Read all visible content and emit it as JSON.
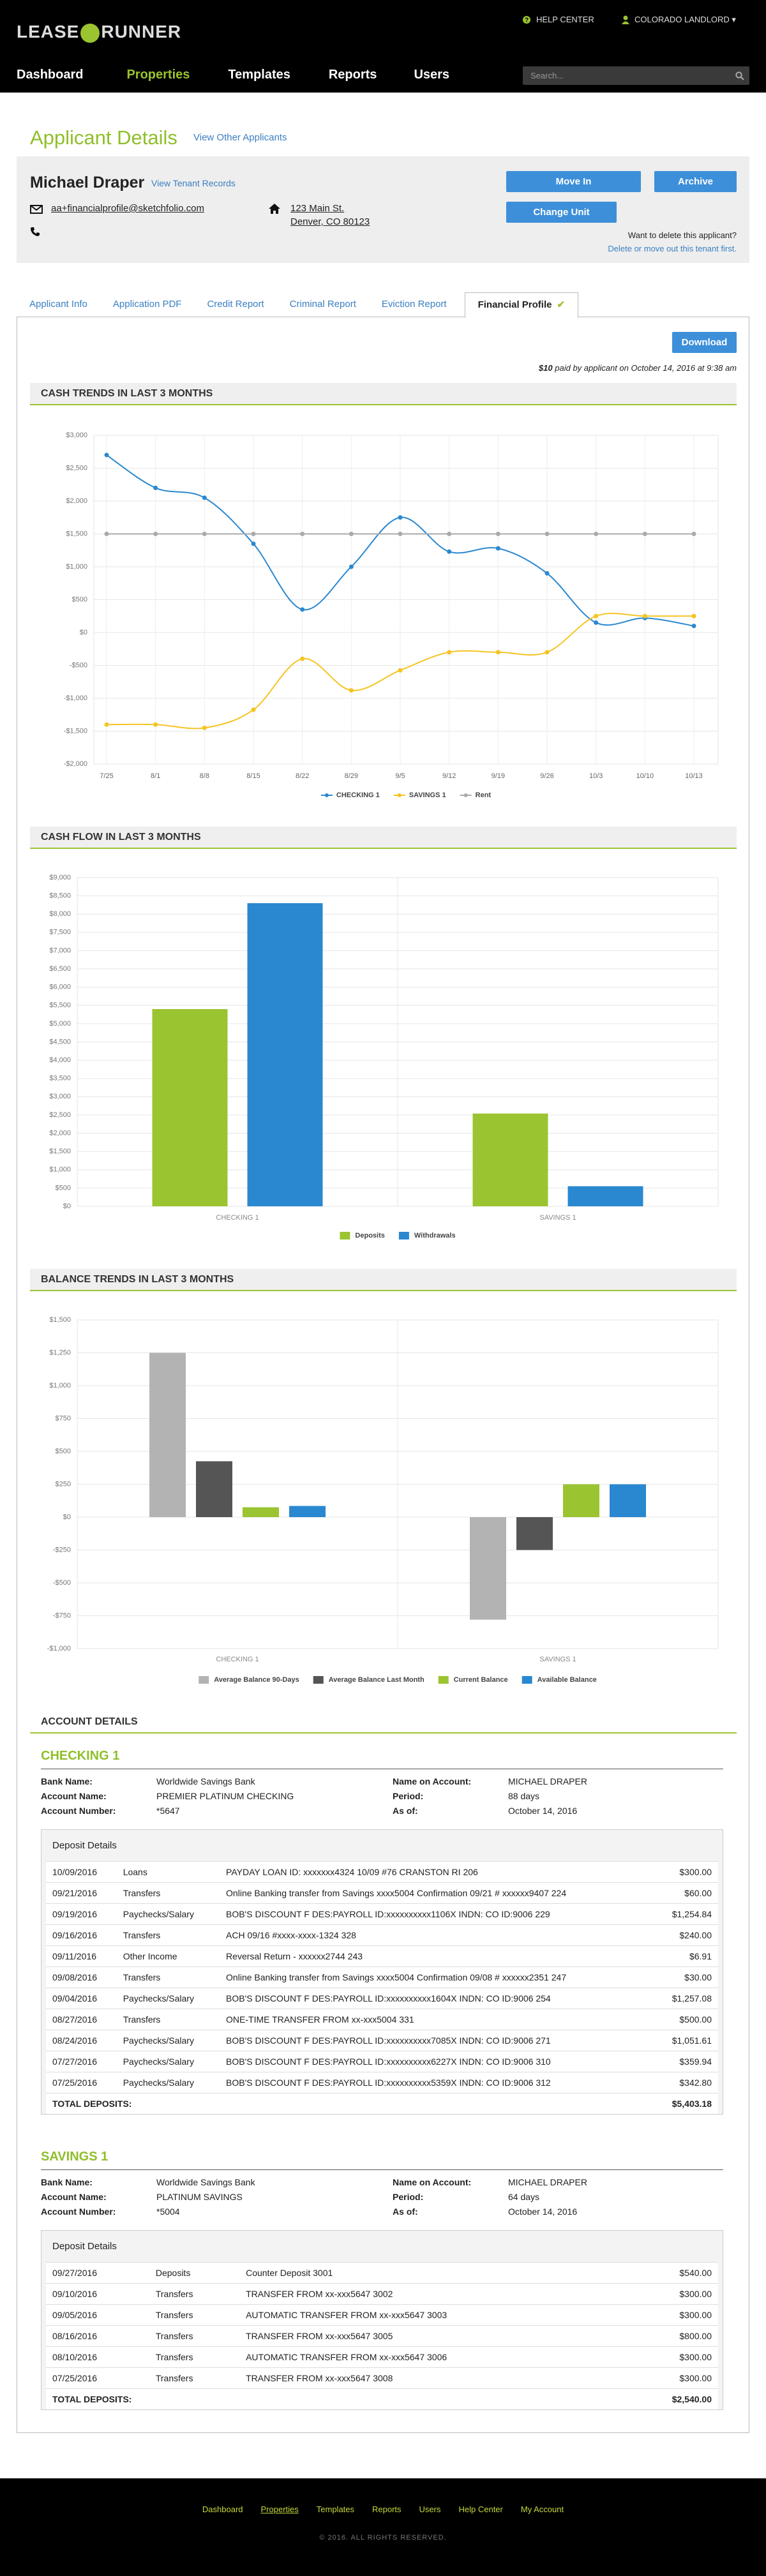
{
  "header": {
    "logo_left": "LEASE",
    "logo_right": "RUNNER",
    "help": "HELP CENTER",
    "user": "COLORADO LANDLORD",
    "nav": [
      "Dashboard",
      "Properties",
      "Templates",
      "Reports",
      "Users"
    ],
    "active_nav": 1,
    "search_placeholder": "Search..."
  },
  "page": {
    "title": "Applicant Details",
    "link": "View Other Applicants"
  },
  "applicant": {
    "name": "Michael Draper",
    "records_link": "View Tenant Records",
    "email": "aa+financialprofile@sketchfolio.com",
    "address": [
      "123 Main St.",
      "Denver, CO 80123"
    ],
    "buttons": [
      "Move In",
      "Archive",
      "Change Unit"
    ],
    "delete_question": "Want to delete this applicant?",
    "delete_note": "Delete or move out this tenant first."
  },
  "tabs": {
    "items": [
      "Applicant Info",
      "Application PDF",
      "Credit Report",
      "Criminal Report",
      "Eviction Report",
      "Financial Profile"
    ],
    "active": 5
  },
  "report": {
    "download": "Download",
    "payment_amount": "$10",
    "payment_note": "paid by applicant on October 14, 2016 at 9:38 am"
  },
  "chart_data": [
    {
      "type": "line",
      "title": "CASH TRENDS IN LAST 3 MONTHS",
      "categories": [
        "7/25",
        "8/1",
        "8/8",
        "8/15",
        "8/22",
        "8/29",
        "9/5",
        "9/12",
        "9/19",
        "9/26",
        "10/3",
        "10/10",
        "10/13"
      ],
      "series": [
        {
          "name": "CHECKING 1",
          "color": "#2a88d0",
          "values": [
            2700,
            2200,
            2050,
            1350,
            350,
            1000,
            1750,
            1230,
            1280,
            900,
            150,
            220,
            100
          ]
        },
        {
          "name": "SAVINGS 1",
          "color": "#f5c421",
          "values": [
            -1400,
            -1400,
            -1450,
            -1175,
            -400,
            -880,
            -575,
            -300,
            -300,
            -300,
            250,
            250,
            250
          ]
        },
        {
          "name": "Rent",
          "color": "#aaaaaa",
          "values": [
            1500,
            1500,
            1500,
            1500,
            1500,
            1500,
            1500,
            1500,
            1500,
            1500,
            1500,
            1500,
            1500
          ]
        }
      ],
      "ylim": [
        -2000,
        3000
      ],
      "yticks": [
        {
          "value": -2000,
          "label": "-$2,000"
        },
        {
          "value": -1500,
          "label": "-$1,500"
        },
        {
          "value": -1000,
          "label": "-$1,000"
        },
        {
          "value": -500,
          "label": "-$500"
        },
        {
          "value": 0,
          "label": "$0"
        },
        {
          "value": 500,
          "label": "$500"
        },
        {
          "value": 1000,
          "label": "$1,000"
        },
        {
          "value": 1500,
          "label": "$1,500"
        },
        {
          "value": 2000,
          "label": "$2,000"
        },
        {
          "value": 2500,
          "label": "$2,500"
        },
        {
          "value": 3000,
          "label": "$3,000"
        }
      ],
      "grid": true,
      "smooth": true
    },
    {
      "type": "bar",
      "title": "CASH FLOW IN LAST 3 MONTHS",
      "categories": [
        "CHECKING 1",
        "SAVINGS 1"
      ],
      "series": [
        {
          "name": "Deposits",
          "color": "#9bc431",
          "values": [
            5400,
            2540
          ]
        },
        {
          "name": "Withdrawals",
          "color": "#2a88d0",
          "values": [
            8300,
            550
          ]
        }
      ],
      "ylim": [
        0,
        9000
      ],
      "yticks": [
        {
          "value": 0,
          "label": "$0"
        },
        {
          "value": 500,
          "label": "$500"
        },
        {
          "value": 1000,
          "label": "$1,000"
        },
        {
          "value": 1500,
          "label": "$1,500"
        },
        {
          "value": 2000,
          "label": "$2,000"
        },
        {
          "value": 2500,
          "label": "$2,500"
        },
        {
          "value": 3000,
          "label": "$3,000"
        },
        {
          "value": 3500,
          "label": "$3,500"
        },
        {
          "value": 4000,
          "label": "$4,000"
        },
        {
          "value": 4500,
          "label": "$4,500"
        },
        {
          "value": 5000,
          "label": "$5,000"
        },
        {
          "value": 5500,
          "label": "$5,500"
        },
        {
          "value": 6000,
          "label": "$6,000"
        },
        {
          "value": 6500,
          "label": "$6,500"
        },
        {
          "value": 7000,
          "label": "$7,000"
        },
        {
          "value": 7500,
          "label": "$7,500"
        },
        {
          "value": 8000,
          "label": "$8,000"
        },
        {
          "value": 8500,
          "label": "$8,500"
        },
        {
          "value": 9000,
          "label": "$9,000"
        }
      ],
      "grid": true
    },
    {
      "type": "bar",
      "title": "BALANCE TRENDS IN LAST 3 MONTHS",
      "categories": [
        "CHECKING 1",
        "SAVINGS 1"
      ],
      "series": [
        {
          "name": "Average Balance 90-Days",
          "color": "#b3b3b3",
          "values": [
            1250,
            -780
          ]
        },
        {
          "name": "Average Balance Last Month",
          "color": "#555555",
          "values": [
            425,
            -250
          ]
        },
        {
          "name": "Current Balance",
          "color": "#9bc431",
          "values": [
            75,
            250
          ]
        },
        {
          "name": "Available Balance",
          "color": "#2a88d0",
          "values": [
            85,
            250
          ]
        }
      ],
      "ylim": [
        -1000,
        1500
      ],
      "yticks": [
        {
          "value": -1000,
          "label": "-$1,000"
        },
        {
          "value": -750,
          "label": "-$750"
        },
        {
          "value": -500,
          "label": "-$500"
        },
        {
          "value": -250,
          "label": "-$250"
        },
        {
          "value": 0,
          "label": "$0"
        },
        {
          "value": 250,
          "label": "$250"
        },
        {
          "value": 500,
          "label": "$500"
        },
        {
          "value": 750,
          "label": "$750"
        },
        {
          "value": 1000,
          "label": "$1,000"
        },
        {
          "value": 1250,
          "label": "$1,250"
        },
        {
          "value": 1500,
          "label": "$1,500"
        }
      ],
      "grid": true
    }
  ],
  "account_details": {
    "title": "ACCOUNT DETAILS",
    "accounts": [
      {
        "name": "CHECKING 1",
        "fields_left": [
          [
            "Bank Name:",
            "Worldwide Savings Bank"
          ],
          [
            "Account Name:",
            "PREMIER PLATINUM CHECKING"
          ],
          [
            "Account Number:",
            "*5647"
          ]
        ],
        "fields_right": [
          [
            "Name on Account:",
            "MICHAEL DRAPER"
          ],
          [
            "Period:",
            "88 days"
          ],
          [
            "As of:",
            "October 14, 2016"
          ]
        ],
        "deposits_title": "Deposit Details",
        "rows": [
          [
            "10/09/2016",
            "Loans",
            "PAYDAY LOAN ID: xxxxxxx4324 10/09 #76 CRANSTON RI 206",
            "$300.00"
          ],
          [
            "09/21/2016",
            "Transfers",
            "Online Banking transfer from Savings xxxx5004 Confirmation 09/21 # xxxxxx9407 224",
            "$60.00"
          ],
          [
            "09/19/2016",
            "Paychecks/Salary",
            "BOB'S DISCOUNT F DES:PAYROLL ID:xxxxxxxxxx1106X INDN: CO ID:9006 229",
            "$1,254.84"
          ],
          [
            "09/16/2016",
            "Transfers",
            "ACH 09/16 #xxxx-xxxx-1324 328",
            "$240.00"
          ],
          [
            "09/11/2016",
            "Other Income",
            "Reversal Return - xxxxxx2744 243",
            "$6.91"
          ],
          [
            "09/08/2016",
            "Transfers",
            "Online Banking transfer from Savings xxxx5004 Confirmation 09/08 # xxxxxx2351 247",
            "$30.00"
          ],
          [
            "09/04/2016",
            "Paychecks/Salary",
            "BOB'S DISCOUNT F DES:PAYROLL ID:xxxxxxxxxx1604X INDN: CO ID:9006 254",
            "$1,257.08"
          ],
          [
            "08/27/2016",
            "Transfers",
            "ONE-TIME TRANSFER FROM xx-xxx5004 331",
            "$500.00"
          ],
          [
            "08/24/2016",
            "Paychecks/Salary",
            "BOB'S DISCOUNT F DES:PAYROLL ID:xxxxxxxxxx7085X INDN: CO ID:9006 271",
            "$1,051.61"
          ],
          [
            "07/27/2016",
            "Paychecks/Salary",
            "BOB'S DISCOUNT F DES:PAYROLL ID:xxxxxxxxxx6227X INDN: CO ID:9006 310",
            "$359.94"
          ],
          [
            "07/25/2016",
            "Paychecks/Salary",
            "BOB'S DISCOUNT F DES:PAYROLL ID:xxxxxxxxxx5359X INDN: CO ID:9006 312",
            "$342.80"
          ]
        ],
        "total_label": "TOTAL DEPOSITS:",
        "total": "$5,403.18"
      },
      {
        "name": "SAVINGS 1",
        "fields_left": [
          [
            "Bank Name:",
            "Worldwide Savings Bank"
          ],
          [
            "Account Name:",
            "PLATINUM SAVINGS"
          ],
          [
            "Account Number:",
            "*5004"
          ]
        ],
        "fields_right": [
          [
            "Name on Account:",
            "MICHAEL DRAPER"
          ],
          [
            "Period:",
            "64 days"
          ],
          [
            "As of:",
            "October 14, 2016"
          ]
        ],
        "deposits_title": "Deposit Details",
        "rows": [
          [
            "09/27/2016",
            "Deposits",
            "Counter Deposit 3001",
            "$540.00"
          ],
          [
            "09/10/2016",
            "Transfers",
            "TRANSFER FROM xx-xxx5647 3002",
            "$300.00"
          ],
          [
            "09/05/2016",
            "Transfers",
            "AUTOMATIC TRANSFER FROM xx-xxx5647 3003",
            "$300.00"
          ],
          [
            "08/16/2016",
            "Transfers",
            "TRANSFER FROM xx-xxx5647 3005",
            "$800.00"
          ],
          [
            "08/10/2016",
            "Transfers",
            "AUTOMATIC TRANSFER FROM xx-xxx5647 3006",
            "$300.00"
          ],
          [
            "07/25/2016",
            "Transfers",
            "TRANSFER FROM xx-xxx5647 3008",
            "$300.00"
          ]
        ],
        "total_label": "TOTAL DEPOSITS:",
        "total": "$2,540.00"
      }
    ]
  },
  "footer": {
    "links": [
      "Dashboard",
      "Properties",
      "Templates",
      "Reports",
      "Users",
      "Help Center",
      "My Account"
    ],
    "active": 1,
    "copyright": "© 2016. ALL RIGHTS RESERVED."
  }
}
